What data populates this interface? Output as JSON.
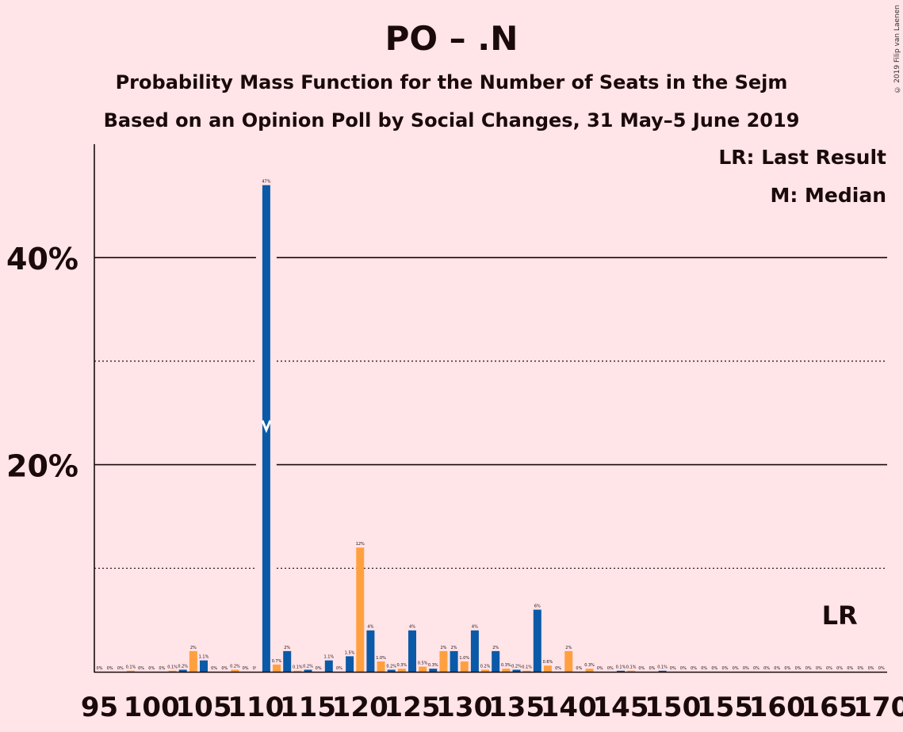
{
  "title": "PO – .N",
  "subtitle1": "Probability Mass Function for the Number of Seats in the Sejm",
  "subtitle2": "Based on an Opinion Poll by Social Changes, 31 May–5 June 2019",
  "copyright": "© 2019 Filip van Laenen",
  "legend": {
    "last_result": "LR: Last Result",
    "median": "M: Median",
    "lr_marker": "LR"
  },
  "colors": {
    "background": "#FFE4E8",
    "bar_blue": "#0A5AA8",
    "bar_orange": "#FFA040",
    "text": "#1a0a0a"
  },
  "chart_data": {
    "type": "bar",
    "x": [
      95,
      96,
      97,
      98,
      99,
      100,
      101,
      102,
      103,
      104,
      105,
      106,
      107,
      108,
      109,
      110,
      111,
      112,
      113,
      114,
      115,
      116,
      117,
      118,
      119,
      120,
      121,
      122,
      123,
      124,
      125,
      126,
      127,
      128,
      129,
      130,
      131,
      132,
      133,
      134,
      135,
      136,
      137,
      138,
      139,
      140,
      141,
      142,
      143,
      144,
      145,
      146,
      147,
      148,
      149,
      150,
      151,
      152,
      153,
      154,
      155,
      156,
      157,
      158,
      159,
      160,
      161,
      162,
      163,
      164,
      165,
      166,
      167,
      168,
      169,
      170
    ],
    "values": [
      0,
      0,
      0,
      0.1,
      0,
      0,
      0,
      0.1,
      0.2,
      2,
      1.1,
      0,
      0,
      0.2,
      0,
      0,
      47,
      0.7,
      2,
      0.1,
      0.2,
      0,
      1.1,
      0,
      1.5,
      12,
      4,
      1.0,
      0.2,
      0.3,
      4,
      0.5,
      0.3,
      2,
      2,
      1.0,
      4,
      0.2,
      2,
      0.3,
      0.2,
      0.1,
      6,
      0.6,
      0,
      2,
      0,
      0.3,
      0,
      0,
      0.1,
      0.1,
      0,
      0,
      0.1,
      0,
      0,
      0,
      0,
      0,
      0,
      0,
      0,
      0,
      0,
      0,
      0,
      0,
      0,
      0,
      0,
      0,
      0,
      0,
      0,
      0
    ],
    "labels": [
      "0%",
      "0%",
      "0%",
      "0.1%",
      "0%",
      "0%",
      "0%",
      "0.1%",
      "0.2%",
      "2%",
      "1.1%",
      "0%",
      "0%",
      "0.2%",
      "0%",
      "0%",
      "47%",
      "0.7%",
      "2%",
      "0.1%",
      "0.2%",
      "0%",
      "1.1%",
      "0%",
      "1.5%",
      "12%",
      "4%",
      "1.0%",
      "0.2%",
      "0.3%",
      "4%",
      "0.5%",
      "0.3%",
      "2%",
      "2%",
      "1.0%",
      "4%",
      "0.2%",
      "2%",
      "0.3%",
      "0.2%",
      "0.1%",
      "6%",
      "0.6%",
      "0%",
      "2%",
      "0%",
      "0.3%",
      "0%",
      "0%",
      "0.1%",
      "0.1%",
      "0%",
      "0%",
      "0.1%",
      "0%",
      "0%",
      "0%",
      "0%",
      "0%",
      "0%",
      "0%",
      "0%",
      "0%",
      "0%",
      "0%",
      "0%",
      "0%",
      "0%",
      "0%",
      "0%",
      "0%",
      "0%",
      "0%",
      "0%",
      "0%"
    ],
    "xticks": [
      95,
      100,
      105,
      110,
      115,
      120,
      125,
      130,
      135,
      140,
      145,
      150,
      155,
      160,
      165,
      170
    ],
    "yticks": [
      {
        "value": 20,
        "label": "20%"
      },
      {
        "value": 40,
        "label": "40%"
      }
    ],
    "ylim": [
      0,
      51
    ],
    "median_seat": 111,
    "last_result_seat": 166,
    "grid": "solid lines at 20% and 40%, dotted lines at 10% and 30%"
  }
}
